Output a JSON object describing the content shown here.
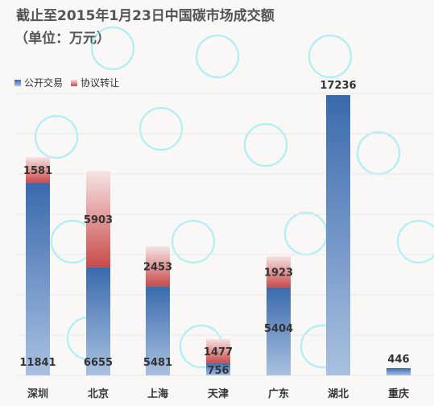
{
  "chart_data": {
    "type": "bar",
    "stacked": true,
    "title": "截止至2015年1月23日中国碳市场成交额",
    "subtitle": "（单位：万元）",
    "categories": [
      "深圳",
      "北京",
      "上海",
      "天津",
      "广东",
      "湖北",
      "重庆"
    ],
    "series": [
      {
        "name": "公开交易",
        "values": [
          11841,
          6655,
          5481,
          756,
          5404,
          17236,
          446
        ]
      },
      {
        "name": "协议转让",
        "values": [
          1581,
          5903,
          2453,
          1477,
          1923,
          0,
          0
        ]
      }
    ],
    "ylim": [
      0,
      18500
    ],
    "grid": true,
    "legend_position": "top-left",
    "colors": {
      "series0_top": "#3a6aad",
      "series0_bottom": "#a9c1e0",
      "series1_top": "#f3dcdc",
      "series1_bottom": "#c94a4a",
      "grid": "#e8e8e8",
      "label": "#333333"
    }
  }
}
